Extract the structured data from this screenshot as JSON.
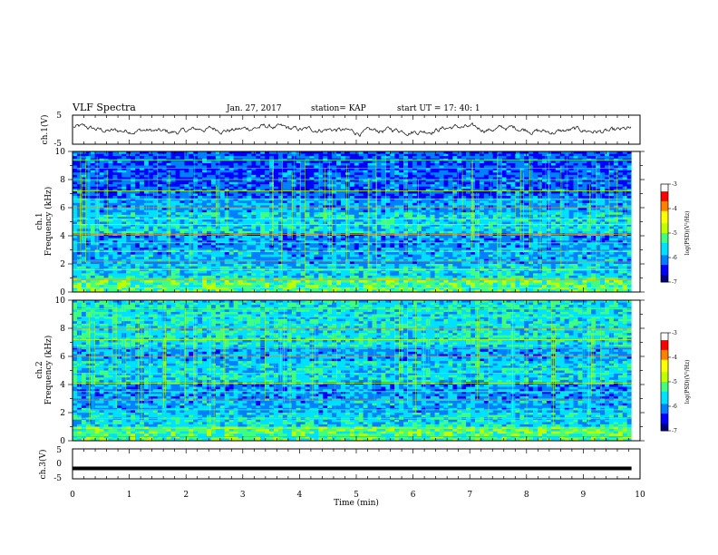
{
  "header": {
    "title": "VLF Spectra",
    "date": "Jan. 27, 2017",
    "station": "station= KAP",
    "start": "start  UT =   17: 40: 1"
  },
  "chart_data": [
    {
      "type": "line",
      "panel": "ch1-waveform",
      "ylabel": "ch.1(V)",
      "ylim": [
        -5,
        5
      ],
      "yticks": [
        "5",
        "-5"
      ],
      "xlim": [
        0,
        10
      ],
      "description_values": "noisy waveform oscillating around 0 V within roughly ±2.5 V over 0–9.85 min"
    },
    {
      "type": "heatmap",
      "panel": "ch1-spectrogram",
      "ylabel": "ch.1\nFrequency (kHz)",
      "ylabel_lines": [
        "ch.1",
        "Frequency (kHz)"
      ],
      "ylim": [
        0,
        10
      ],
      "yticks": [
        "0",
        "2",
        "4",
        "6",
        "8",
        "10"
      ],
      "xlim": [
        0,
        10
      ],
      "colorbar": {
        "label": "log(PSD)(V²/Hz)",
        "range": [
          -7,
          -3
        ],
        "ticks": [
          "-3",
          "-4",
          "-5",
          "-6",
          "-7"
        ]
      }
    },
    {
      "type": "heatmap",
      "panel": "ch2-spectrogram",
      "ylabel": "ch.2\nFrequency (kHz)",
      "ylabel_lines": [
        "ch.2",
        "Frequency (kHz)"
      ],
      "ylim": [
        0,
        10
      ],
      "yticks": [
        "0",
        "2",
        "4",
        "6",
        "8",
        "10"
      ],
      "xlim": [
        0,
        10
      ],
      "colorbar": {
        "label": "log(PSD)(V²/Hz)",
        "range": [
          -7,
          -3
        ],
        "ticks": [
          "-3",
          "-4",
          "-5",
          "-6",
          "-7"
        ]
      }
    },
    {
      "type": "line",
      "panel": "ch3-waveform",
      "ylabel": "ch.3(V)",
      "ylim": [
        -5,
        5
      ],
      "yticks": [
        "5",
        "0",
        "-5"
      ],
      "xlim": [
        0,
        10
      ],
      "values_note": "flat line at about -1.5 V",
      "constant_value": -1.5
    }
  ],
  "xaxis": {
    "label": "Time (min)",
    "range": [
      0,
      10
    ],
    "ticks": [
      "0",
      "1",
      "2",
      "3",
      "4",
      "5",
      "6",
      "7",
      "8",
      "9",
      "10"
    ]
  },
  "colors": {
    "bg": "#ffffff",
    "ink": "#000000",
    "colormap": [
      "#000080",
      "#0000ff",
      "#0080ff",
      "#00e0ff",
      "#40ff80",
      "#c0ff00",
      "#ffff00",
      "#ff8000",
      "#ff0000",
      "#ffffff"
    ]
  }
}
